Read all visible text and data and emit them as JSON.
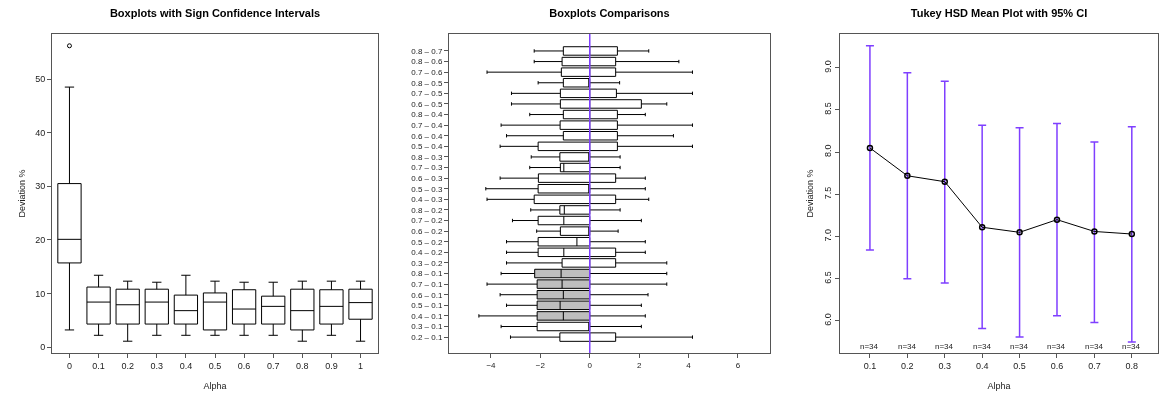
{
  "chart_data": [
    {
      "type": "box",
      "title": "Boxplots with Sign Confidence Intervals",
      "xlabel": "Alpha",
      "ylabel": "Deviation %",
      "categories": [
        "0",
        "0.1",
        "0.2",
        "0.3",
        "0.4",
        "0.5",
        "0.6",
        "0.7",
        "0.8",
        "0.9",
        "1"
      ],
      "color": "#000000",
      "boxes": [
        {
          "low": 3.2,
          "q1": 15.7,
          "median": 20.1,
          "q3": 30.5,
          "high": 48.5,
          "outliers": [
            56.2
          ]
        },
        {
          "low": 2.2,
          "q1": 4.3,
          "median": 8.4,
          "q3": 11.2,
          "high": 13.4
        },
        {
          "low": 1.1,
          "q1": 4.3,
          "median": 7.9,
          "q3": 10.8,
          "high": 12.3
        },
        {
          "low": 2.2,
          "q1": 4.3,
          "median": 8.4,
          "q3": 10.8,
          "high": 12.1
        },
        {
          "low": 2.2,
          "q1": 4.3,
          "median": 6.8,
          "q3": 9.7,
          "high": 13.4
        },
        {
          "low": 2.2,
          "q1": 3.2,
          "median": 8.4,
          "q3": 10.1,
          "high": 12.3
        },
        {
          "low": 2.2,
          "q1": 4.3,
          "median": 7.1,
          "q3": 10.7,
          "high": 12.1
        },
        {
          "low": 2.2,
          "q1": 4.3,
          "median": 7.6,
          "q3": 9.5,
          "high": 12.1
        },
        {
          "low": 1.1,
          "q1": 3.2,
          "median": 6.8,
          "q3": 10.8,
          "high": 12.3
        },
        {
          "low": 2.2,
          "q1": 4.3,
          "median": 7.6,
          "q3": 10.7,
          "high": 12.3
        },
        {
          "low": 1.1,
          "q1": 5.2,
          "median": 8.3,
          "q3": 10.8,
          "high": 12.3
        }
      ],
      "ylim": [
        -1.1,
        58.4
      ],
      "yticks": [
        0,
        10,
        20,
        30,
        40,
        50
      ],
      "grid": false
    },
    {
      "type": "box",
      "orientation": "horizontal",
      "title": "Boxplots Comparisons",
      "categories": [
        "0.8 – 0.7",
        "0.8 – 0.6",
        "0.7 – 0.6",
        "0.8 – 0.5",
        "0.7 – 0.5",
        "0.6 – 0.5",
        "0.8 – 0.4",
        "0.7 – 0.4",
        "0.6 – 0.4",
        "0.5 – 0.4",
        "0.8 – 0.3",
        "0.7 – 0.3",
        "0.6 – 0.3",
        "0.5 – 0.3",
        "0.4 – 0.3",
        "0.8 – 0.2",
        "0.7 – 0.2",
        "0.6 – 0.2",
        "0.5 – 0.2",
        "0.4 – 0.2",
        "0.3 – 0.2",
        "0.8 – 0.1",
        "0.7 – 0.1",
        "0.6 – 0.1",
        "0.5 – 0.1",
        "0.4 – 0.1",
        "0.3 – 0.1",
        "0.2 – 0.1"
      ],
      "colors": [
        "#ffffff",
        "#ffffff",
        "#ffffff",
        "#ffffff",
        "#ffffff",
        "#ffffff",
        "#ffffff",
        "#ffffff",
        "#ffffff",
        "#ffffff",
        "#ffffff",
        "#ffffff",
        "#ffffff",
        "#ffffff",
        "#ffffff",
        "#ffffff",
        "#ffffff",
        "#ffffff",
        "#ffffff",
        "#ffffff",
        "#ffffff",
        "#bebebe",
        "#bebebe",
        "#bebebe",
        "#bebebe",
        "#bebebe",
        "#ffffff",
        "#ffffff"
      ],
      "boxes": [
        {
          "low": -2.25,
          "q1": -1.07,
          "median": 0,
          "q3": 1.12,
          "high": 2.39
        },
        {
          "low": -2.25,
          "q1": -1.12,
          "median": 0,
          "q3": 1.05,
          "high": 3.61
        },
        {
          "low": -4.16,
          "q1": -1.15,
          "median": 0,
          "q3": 1.05,
          "high": 4.16
        },
        {
          "low": -2.09,
          "q1": -1.07,
          "median": 0,
          "q3": 0,
          "high": 1.21
        },
        {
          "low": -3.17,
          "q1": -1.19,
          "median": 0,
          "q3": 1.08,
          "high": 4.16
        },
        {
          "low": -3.17,
          "q1": -1.19,
          "median": 0,
          "q3": 2.09,
          "high": 3.12
        },
        {
          "low": -2.43,
          "q1": -1.07,
          "median": 0,
          "q3": 1.12,
          "high": 2.25
        },
        {
          "low": -3.59,
          "q1": -1.2,
          "median": 0,
          "q3": 1.12,
          "high": 4.16
        },
        {
          "low": -3.37,
          "q1": -1.07,
          "median": 0,
          "q3": 1.12,
          "high": 3.39
        },
        {
          "low": -3.63,
          "q1": -2.09,
          "median": 0,
          "q3": 1.12,
          "high": 4.16
        },
        {
          "low": -2.37,
          "q1": -1.21,
          "median": 0,
          "q3": 0,
          "high": 1.23
        },
        {
          "low": -2.43,
          "q1": -1.19,
          "median": -1.05,
          "q3": 0,
          "high": 1.23
        },
        {
          "low": -3.63,
          "q1": -2.08,
          "median": 0,
          "q3": 1.05,
          "high": 2.25
        },
        {
          "low": -4.21,
          "q1": -2.09,
          "median": 0,
          "q3": 0,
          "high": 2.25
        },
        {
          "low": -4.16,
          "q1": -2.25,
          "median": 0,
          "q3": 1.05,
          "high": 2.39
        },
        {
          "low": -2.39,
          "q1": -1.21,
          "median": -1.03,
          "q3": 0,
          "high": 1.23
        },
        {
          "low": -3.13,
          "q1": -2.09,
          "median": -1.05,
          "q3": 0,
          "high": 2.09
        },
        {
          "low": -2.15,
          "q1": -1.19,
          "median": 0,
          "q3": 0,
          "high": 1.15
        },
        {
          "low": -3.37,
          "q1": -2.09,
          "median": -0.52,
          "q3": 0,
          "high": 2.25
        },
        {
          "low": -3.37,
          "q1": -2.09,
          "median": -1.05,
          "q3": 1.05,
          "high": 2.25
        },
        {
          "low": -3.37,
          "q1": -1.12,
          "median": 0,
          "q3": 1.05,
          "high": 3.12
        },
        {
          "low": -3.59,
          "q1": -2.23,
          "median": -1.16,
          "q3": 0,
          "high": 3.12
        },
        {
          "low": -4.16,
          "q1": -2.13,
          "median": -1.12,
          "q3": 0,
          "high": 3.12
        },
        {
          "low": -3.63,
          "q1": -2.13,
          "median": -1.07,
          "q3": 0,
          "high": 2.36
        },
        {
          "low": -3.37,
          "q1": -2.13,
          "median": -1.2,
          "q3": 0,
          "high": 2.09
        },
        {
          "low": -4.49,
          "q1": -2.13,
          "median": -1.07,
          "q3": 0,
          "high": 2.25
        },
        {
          "low": -3.59,
          "q1": -2.13,
          "median": 0,
          "q3": 0,
          "high": 2.09
        },
        {
          "low": -3.21,
          "q1": -1.21,
          "median": 0,
          "q3": 1.05,
          "high": 4.16
        }
      ],
      "xlim": [
        -5.7,
        7.3
      ],
      "xticks": [
        {
          "value": -4,
          "label": "−4"
        },
        {
          "value": -2,
          "label": "−2"
        },
        0,
        2,
        4,
        6
      ],
      "ref_lines": [
        {
          "axis": "x",
          "value": 0,
          "color": "#7f3fff"
        }
      ],
      "grid": false
    },
    {
      "type": "line",
      "title": "Tukey HSD Mean Plot with 95% CI",
      "xlabel": "Alpha",
      "ylabel": "Deviation %",
      "categories": [
        "0.1",
        "0.2",
        "0.3",
        "0.4",
        "0.5",
        "0.6",
        "0.7",
        "0.8"
      ],
      "series": [
        {
          "color": "#000000",
          "values": [
            8.05,
            7.72,
            7.65,
            7.11,
            7.05,
            7.2,
            7.06,
            7.03
          ],
          "errors": [
            [
              6.84,
              9.26
            ],
            [
              6.5,
              8.94
            ],
            [
              6.45,
              8.84
            ],
            [
              5.91,
              8.32
            ],
            [
              5.81,
              8.29
            ],
            [
              6.06,
              8.34
            ],
            [
              5.98,
              8.12
            ],
            [
              5.75,
              8.3
            ]
          ]
        }
      ],
      "marker": "circle",
      "line_style": "solid",
      "annotations": [
        "n=34",
        "n=34",
        "n=34",
        "n=34",
        "n=34",
        "n=34",
        "n=34",
        "n=34"
      ],
      "ylim": [
        5.62,
        9.4
      ],
      "yticks": [
        {
          "value": 6,
          "label": "6.0"
        },
        {
          "value": 6.5,
          "label": "6.5"
        },
        {
          "value": 7,
          "label": "7.0"
        },
        {
          "value": 7.5,
          "label": "7.5"
        },
        {
          "value": 8,
          "label": "8.0"
        },
        {
          "value": 8.5,
          "label": "8.5"
        },
        {
          "value": 9,
          "label": "9.0"
        }
      ],
      "grid": false
    }
  ]
}
